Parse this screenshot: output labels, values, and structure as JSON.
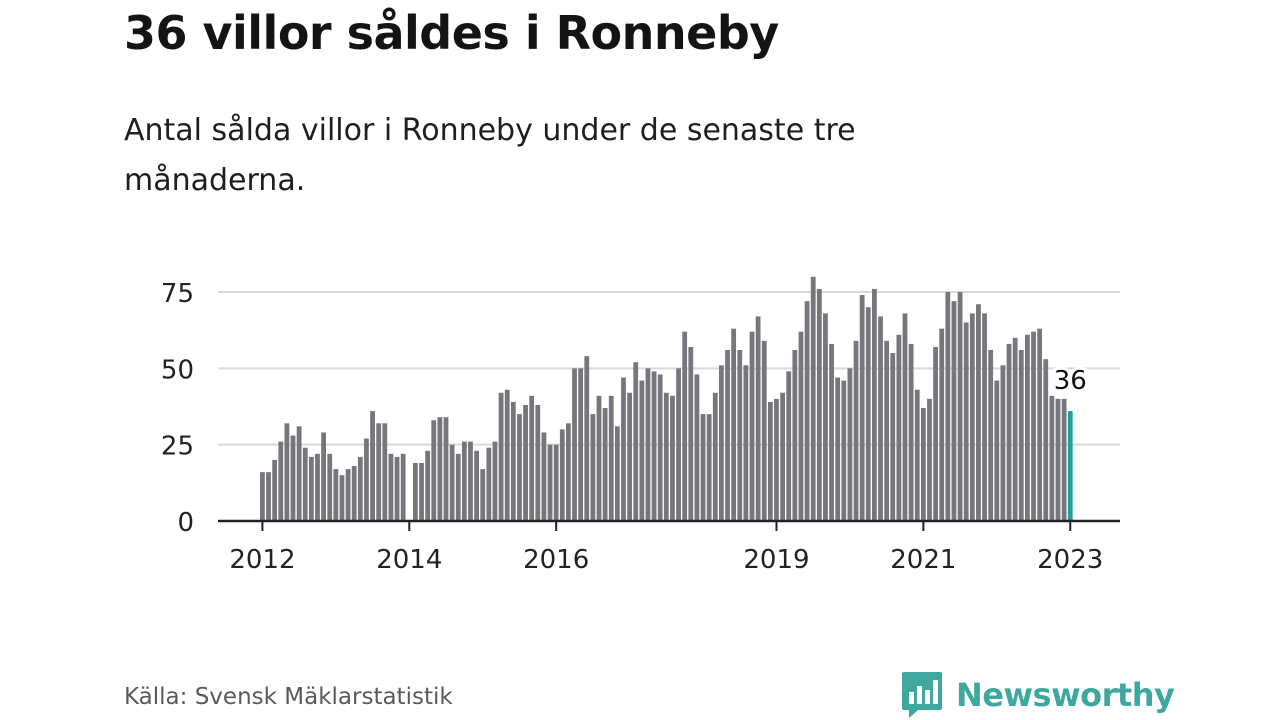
{
  "header": {
    "title": "36 villor såldes i Ronneby",
    "subtitle": "Antal sålda villor i Ronneby under de senaste tre månaderna."
  },
  "footer": {
    "source": "Källa: Svensk Mäklarstatistik",
    "brand": "Newsworthy"
  },
  "colors": {
    "bar": "#76767c",
    "highlight": "#1aa39a",
    "grid": "#d9d9d9",
    "axis": "#222222",
    "brand": "#3fa89e"
  },
  "chart_data": {
    "type": "bar",
    "start": "2012-01",
    "values": [
      16,
      16,
      20,
      26,
      32,
      28,
      31,
      24,
      21,
      22,
      29,
      22,
      17,
      15,
      17,
      18,
      21,
      27,
      36,
      32,
      32,
      22,
      21,
      22,
      null,
      19,
      19,
      23,
      33,
      34,
      34,
      25,
      22,
      26,
      26,
      23,
      17,
      24,
      26,
      42,
      43,
      39,
      35,
      38,
      41,
      38,
      29,
      25,
      25,
      30,
      32,
      50,
      50,
      54,
      35,
      41,
      37,
      41,
      31,
      47,
      42,
      52,
      46,
      50,
      49,
      48,
      42,
      41,
      50,
      62,
      57,
      48,
      35,
      35,
      42,
      51,
      56,
      63,
      56,
      51,
      62,
      67,
      59,
      39,
      40,
      42,
      49,
      56,
      62,
      72,
      80,
      76,
      68,
      58,
      47,
      46,
      50,
      59,
      74,
      70,
      76,
      67,
      59,
      55,
      61,
      68,
      58,
      43,
      37,
      40,
      57,
      63,
      75,
      72,
      75,
      65,
      68,
      71,
      68,
      56,
      46,
      51,
      58,
      60,
      56,
      61,
      62,
      63,
      53,
      41,
      40,
      40,
      36
    ],
    "highlight_last": true,
    "last_label": "36",
    "ylim": [
      0,
      82
    ],
    "yticks": [
      0,
      25,
      50,
      75
    ],
    "xticks": [
      {
        "label": "2012",
        "index": 0
      },
      {
        "label": "2014",
        "index": 24
      },
      {
        "label": "2016",
        "index": 48
      },
      {
        "label": "2019",
        "index": 84
      },
      {
        "label": "2021",
        "index": 108
      },
      {
        "label": "2023",
        "index": 132
      }
    ],
    "grid": true
  }
}
